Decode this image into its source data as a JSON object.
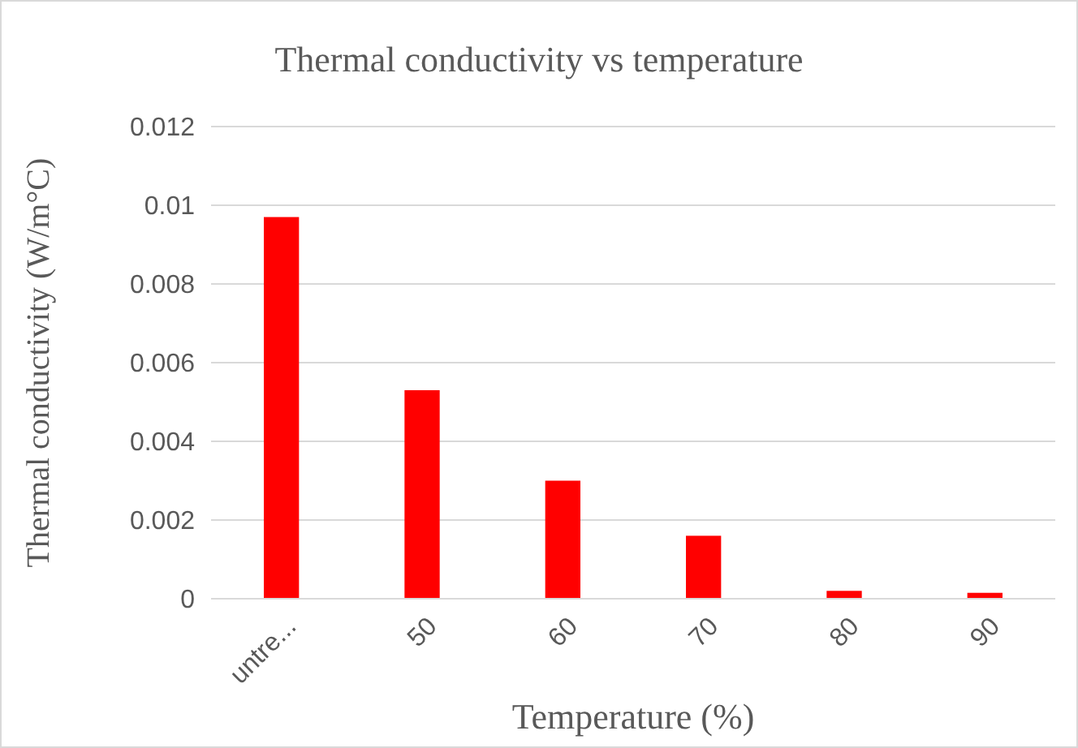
{
  "chart_data": {
    "type": "bar",
    "title": "Thermal conductivity vs temperature",
    "xlabel": "Temperature (%)",
    "ylabel": "Thermal conductivity (W/m°C)",
    "categories": [
      "untre...",
      "50",
      "60",
      "70",
      "80",
      "90"
    ],
    "values": [
      0.0097,
      0.0053,
      0.003,
      0.0016,
      0.0002,
      0.00015
    ],
    "color": "#ff0000",
    "ylim": [
      0,
      0.012
    ],
    "yticks": [
      0,
      0.002,
      0.004,
      0.006,
      0.008,
      0.01,
      0.012
    ],
    "grid": "y"
  }
}
